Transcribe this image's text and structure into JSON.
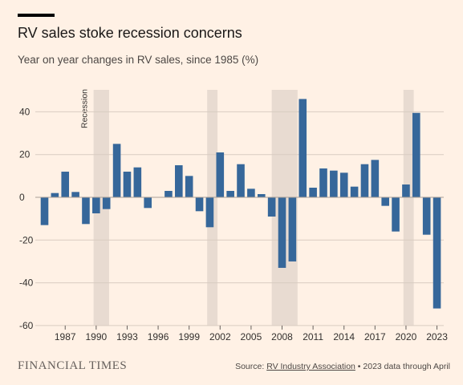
{
  "header": {
    "title": "RV sales stoke recession concerns",
    "subtitle": "Year on year changes in RV sales, since 1985 (%)"
  },
  "footer": {
    "logo": "FINANCIAL TIMES",
    "source_prefix": "Source: ",
    "source_link": "RV Industry Association",
    "source_suffix": " • 2023 data through April"
  },
  "colors": {
    "background": "#fff1e5",
    "bar": "#36679a",
    "recession": "#e8dbd1",
    "grid": "#d9ccc1"
  },
  "chart_data": {
    "type": "bar",
    "title": "RV sales stoke recession concerns",
    "subtitle": "Year on year changes in RV sales, since 1985 (%)",
    "xlabel": "",
    "ylabel": "",
    "ylim": [
      -60,
      50
    ],
    "yticks": [
      40,
      20,
      0,
      -20,
      -40,
      -60
    ],
    "xtick_labels": [
      "1987",
      "1990",
      "1993",
      "1996",
      "1999",
      "2002",
      "2005",
      "2008",
      "2011",
      "2014",
      "2017",
      "2020",
      "2023"
    ],
    "categories": [
      "1985",
      "1986",
      "1987",
      "1988",
      "1989",
      "1990",
      "1991",
      "1992",
      "1993",
      "1994",
      "1995",
      "1996",
      "1997",
      "1998",
      "1999",
      "2000",
      "2001",
      "2002",
      "2003",
      "2004",
      "2005",
      "2006",
      "2007",
      "2008",
      "2009",
      "2010",
      "2011",
      "2012",
      "2013",
      "2014",
      "2015",
      "2016",
      "2017",
      "2018",
      "2019",
      "2020",
      "2021",
      "2022",
      "2023"
    ],
    "values": [
      -13,
      2,
      12,
      2.5,
      -12.5,
      -7.5,
      -5.5,
      25,
      12,
      14,
      -5,
      0,
      3,
      15,
      10,
      -6.5,
      -14,
      21,
      3,
      15.5,
      4,
      1.5,
      -9,
      -33,
      -30,
      46,
      4.5,
      13.5,
      12.5,
      11.5,
      5,
      15.5,
      17.5,
      -4,
      -16,
      6,
      39.5,
      -17.5,
      -52
    ],
    "recessions": [
      {
        "label": "Recession",
        "start": 1989.75,
        "end": 1991.25
      },
      {
        "start": 2000.75,
        "end": 2001.75
      },
      {
        "start": 2007.0,
        "end": 2009.5
      },
      {
        "start": 2019.75,
        "end": 2020.75
      }
    ],
    "recession_label": "Recession",
    "grid": true
  }
}
